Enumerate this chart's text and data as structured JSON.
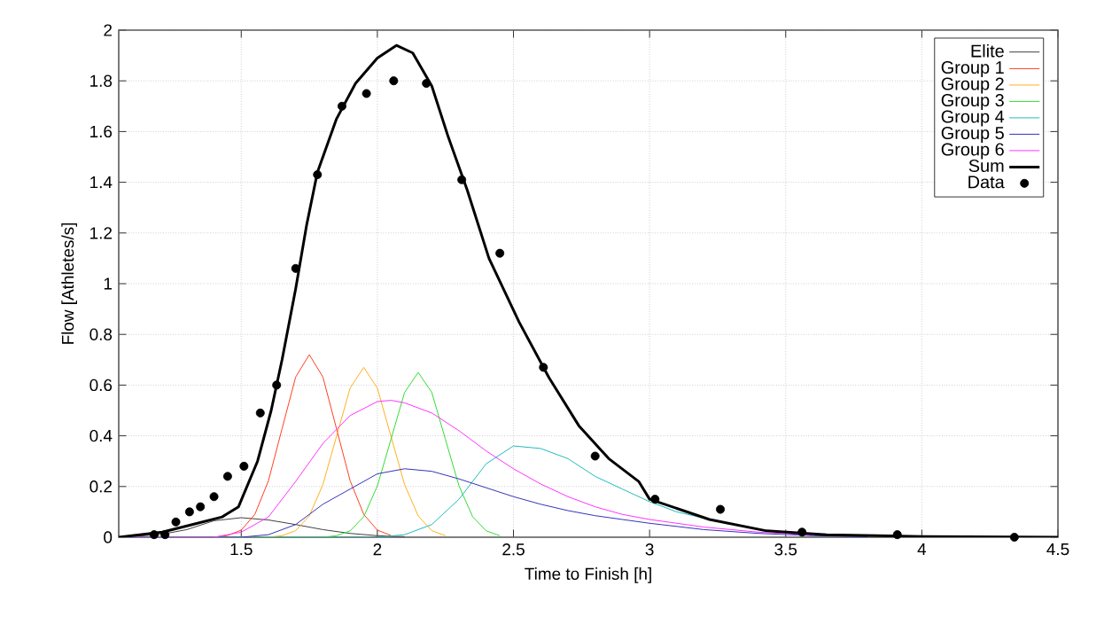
{
  "chart_data": {
    "type": "line",
    "xlabel": "Time to Finish [h]",
    "ylabel": "Flow [Athletes/s]",
    "xlim": [
      1.05,
      4.5
    ],
    "xticks": [
      1.5,
      2,
      2.5,
      3,
      3.5,
      4,
      4.5
    ],
    "ylim": [
      0,
      2
    ],
    "yticks": [
      0,
      0.2,
      0.4,
      0.6,
      0.8,
      1,
      1.2,
      1.4,
      1.6,
      1.8,
      2
    ],
    "grid": true,
    "legend": "top right",
    "marker": "none",
    "line_style": "solid",
    "series": [
      {
        "name": "Elite",
        "color": "#404040",
        "x": [
          1.05,
          1.2,
          1.3,
          1.4,
          1.5,
          1.6,
          1.7,
          1.8,
          1.9,
          2.0,
          2.1
        ],
        "values": [
          0,
          0.01,
          0.03,
          0.065,
          0.077,
          0.068,
          0.05,
          0.03,
          0.015,
          0.006,
          0.002
        ]
      },
      {
        "name": "Group 1",
        "color": "#ff4020",
        "x": [
          1.05,
          1.4,
          1.45,
          1.5,
          1.55,
          1.6,
          1.65,
          1.7,
          1.75,
          1.8,
          1.85,
          1.9,
          1.95,
          2.0,
          2.05
        ],
        "values": [
          0,
          0,
          0.007,
          0.028,
          0.09,
          0.223,
          0.428,
          0.632,
          0.72,
          0.632,
          0.428,
          0.223,
          0.09,
          0.028,
          0.007
        ]
      },
      {
        "name": "Group 2",
        "color": "#ffb020",
        "x": [
          1.05,
          1.6,
          1.65,
          1.7,
          1.75,
          1.8,
          1.85,
          1.9,
          1.95,
          2.0,
          2.05,
          2.1,
          2.15,
          2.2,
          2.25
        ],
        "values": [
          0,
          0,
          0.006,
          0.026,
          0.084,
          0.208,
          0.398,
          0.588,
          0.67,
          0.588,
          0.398,
          0.208,
          0.084,
          0.026,
          0.006
        ]
      },
      {
        "name": "Group 3",
        "color": "#33dd33",
        "x": [
          1.05,
          1.8,
          1.85,
          1.9,
          1.95,
          2.0,
          2.05,
          2.1,
          2.15,
          2.2,
          2.25,
          2.3,
          2.35,
          2.4,
          2.45
        ],
        "values": [
          0,
          0,
          0.006,
          0.025,
          0.081,
          0.202,
          0.386,
          0.571,
          0.65,
          0.571,
          0.386,
          0.202,
          0.081,
          0.025,
          0.006
        ]
      },
      {
        "name": "Group 4",
        "color": "#22bbbb",
        "x": [
          1.05,
          2.0,
          2.1,
          2.2,
          2.3,
          2.4,
          2.5,
          2.6,
          2.7,
          2.8,
          2.9,
          3.0,
          3.1,
          3.2,
          3.3
        ],
        "values": [
          0,
          0,
          0.01,
          0.05,
          0.15,
          0.29,
          0.36,
          0.35,
          0.31,
          0.24,
          0.19,
          0.14,
          0.1,
          0.075,
          0.05
        ]
      },
      {
        "name": "Group 5",
        "color": "#3333bb",
        "x": [
          1.05,
          1.5,
          1.6,
          1.7,
          1.8,
          1.9,
          2.0,
          2.1,
          2.2,
          2.3,
          2.4,
          2.5,
          2.6,
          2.7,
          2.8,
          2.9,
          3.0,
          3.2,
          3.4,
          3.6,
          3.8
        ],
        "values": [
          0,
          0,
          0.01,
          0.05,
          0.13,
          0.19,
          0.25,
          0.27,
          0.26,
          0.23,
          0.195,
          0.16,
          0.13,
          0.105,
          0.085,
          0.07,
          0.055,
          0.03,
          0.015,
          0.006,
          0.002
        ]
      },
      {
        "name": "Group 6",
        "color": "#ff33ff",
        "x": [
          1.05,
          1.4,
          1.5,
          1.6,
          1.7,
          1.8,
          1.9,
          2.0,
          2.05,
          2.1,
          2.2,
          2.3,
          2.4,
          2.5,
          2.6,
          2.7,
          2.8,
          2.9,
          3.0,
          3.2,
          3.4,
          3.6
        ],
        "values": [
          0,
          0,
          0.02,
          0.08,
          0.22,
          0.37,
          0.48,
          0.535,
          0.54,
          0.53,
          0.49,
          0.42,
          0.34,
          0.27,
          0.21,
          0.16,
          0.12,
          0.09,
          0.07,
          0.04,
          0.02,
          0.008
        ]
      },
      {
        "name": "Sum",
        "color": "#000000",
        "x": [
          1.05,
          1.21,
          1.32,
          1.43,
          1.49,
          1.56,
          1.61,
          1.65,
          1.7,
          1.74,
          1.78,
          1.85,
          1.92,
          2.0,
          2.07,
          2.13,
          2.2,
          2.26,
          2.33,
          2.41,
          2.52,
          2.63,
          2.74,
          2.85,
          2.96,
          3.0,
          3.22,
          3.43,
          3.65,
          4.0,
          4.5
        ],
        "values": [
          0,
          0.02,
          0.05,
          0.08,
          0.12,
          0.3,
          0.5,
          0.7,
          0.98,
          1.23,
          1.44,
          1.65,
          1.79,
          1.89,
          1.94,
          1.91,
          1.78,
          1.58,
          1.37,
          1.1,
          0.85,
          0.63,
          0.44,
          0.31,
          0.22,
          0.15,
          0.07,
          0.025,
          0.01,
          0.003,
          0
        ]
      },
      {
        "name": "Data",
        "type": "scatter",
        "marker": "circle",
        "color": "#000000",
        "x": [
          1.18,
          1.22,
          1.26,
          1.31,
          1.35,
          1.4,
          1.45,
          1.51,
          1.57,
          1.63,
          1.7,
          1.78,
          1.87,
          1.96,
          2.06,
          2.18,
          2.31,
          2.45,
          2.61,
          2.8,
          3.02,
          3.26,
          3.56,
          3.91,
          4.34
        ],
        "values": [
          0.01,
          0.01,
          0.06,
          0.1,
          0.12,
          0.16,
          0.24,
          0.28,
          0.49,
          0.6,
          1.06,
          1.43,
          1.7,
          1.75,
          1.8,
          1.79,
          1.41,
          1.12,
          0.67,
          0.32,
          0.15,
          0.11,
          0.02,
          0.01,
          0
        ]
      }
    ]
  }
}
